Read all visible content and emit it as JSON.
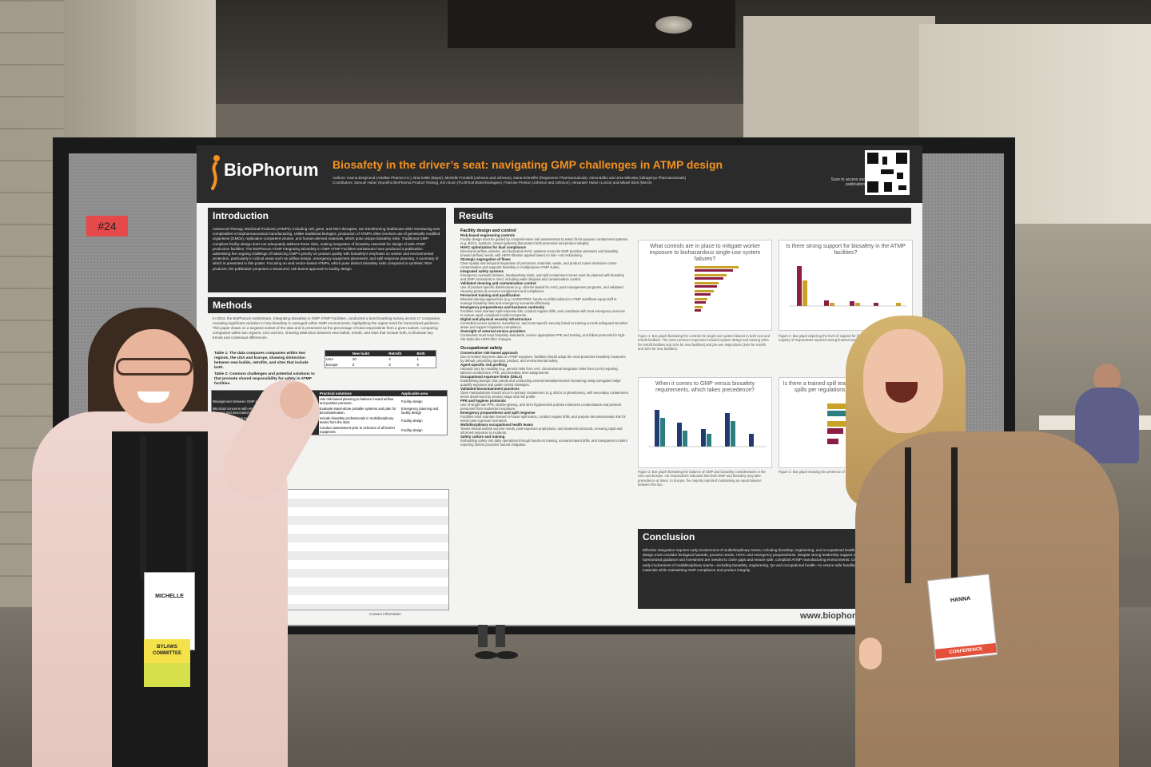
{
  "sign": {
    "number": "#24"
  },
  "poster": {
    "logo": "BioPhorum",
    "title": "Biosafety in the driver’s seat: navigating GMP challenges in ATMP design",
    "authors": "Authors: Hanna Bergmoud (Astellas Pharma Inc.), Bria Kettle (Bayer), Michelle Frondelli (Johnson and Johnson), Dana Schneffer (Regeneron Pharmaceuticals), Alexa Balbo and Jess Mikoska (Ultragenyx Pharmaceuticals)",
    "contributors": "Contributors: Samuel Huber (Eurofins BioPharma Product Testing), Erin Dunn (FUJIFILM Biotechnologies), Francine Preston (Johnson and Johnson), Alexander Huber (Lonza) and Mikael Blick (Merck)",
    "scan_text": "Scan to access our publication",
    "intro_heading": "Introduction",
    "intro_text": "Advanced Therapy Medicinal Products (ATMPs), including cell, gene, and RNA therapies, are transforming healthcare while introducing new complexities in biopharmaceutical manufacturing. Unlike traditional biologics, production of ATMPs often involves use of genetically modified organisms (GMOs), replication-competent viruses, and human-derived materials, which pose unique biosafety risks. Traditional GMP-compliant facility design does not adequately address these risks, making integration of biosafety essential for design of safe ATMP production facilities. The BioPhorum ATMP Integrating Biosafety in GMP ATMP Facilities workstream have produced a publication addressing the ongoing challenge of balancing GMP's priority on product quality with biosafety's emphasis on worker and environmental protection, particularly in critical areas such as airflow design, emergency equipment placement, and spill response planning. A summary of which is presented in this poster. Focusing on viral vector-based ATMPs, which pose distinct biosafety risks compared to synthetic RNA products, the publication proposes a structured, risk-based approach to facility design.",
    "methods_heading": "Methods",
    "methods_text": "In 2024, the BioPhorum workstream, Integrating Biosafety in GMP ATMP Facilities, conducted a benchmarking survey across 17 companies, revealing significant variation in how biosafety is managed within GMP environments, highlighting the urgent need for harmonized guidance. This paper draws on a targeted subset of the data and is presented as the percentage of total respondents from a given subset, comparing companies within two regions, USA and EU, showing distinction between new builds, retrofit, and sites that include both, to illustrate key trends and contextual differences.",
    "table1_caption": "Table 1: The data compares companies within two regions, the USA and Europe, showing distinction between new builds, retrofits, and sites that include both.",
    "table2_caption": "Table 2: Common challenges and potential solutions to that promote shared responsibility for safety in ATMP facilities.",
    "table1": {
      "headers": [
        "",
        "New build",
        "Retrofit",
        "Both"
      ],
      "rows": [
        [
          "USA",
          "10",
          "4",
          "1"
        ],
        [
          "Europe",
          "2",
          "3",
          "0"
        ]
      ]
    },
    "table2": {
      "headers": [
        "",
        "Practical solutions",
        "Applicable area"
      ],
      "rows": [
        [
          "Misalignment between GMP and biosafety (e.g., airflow conflicts)",
          "Use risk-based planning to balance inward airflow and positive pressure.",
          "Facility design"
        ],
        [
          "Microbial concerns with emergency equipment (e.g. eyewash safety showers and associated drains)",
          "Evaluate stand-alone portable systems and plan for decontamination.",
          "Emergency planning and facility design"
        ],
        [
          "Inadequate planning and coordination with appropriate biosafety personnel in early design",
          "Include biosafety professionals in multidisciplinary teams from the start.",
          "Facility design"
        ],
        [
          "Designing engineering controls",
          "Conduct assessment prior to selection of all barrier equipment.",
          "Facility design"
        ]
      ]
    },
    "results_heading": "Results",
    "results": [
      {
        "sub": "Facility design and control",
        "items": [
          {
            "h": "Risk-based engineering controls",
            "t": "Facility design must be guided by comprehensive risk assessments to select fit-for-purpose containment systems (e.g. BSCs, isolators, closed systems) that protect both personnel and product integrity."
          },
          {
            "h": "HVAC optimization for dual compliance",
            "t": "Directional airflow, airlocks, and dedicated HVAC systems reconcile GMP (positive pressure) and biosafety (inward airflow) needs, with HEPA filtration applied based on risk—not redundancy."
          },
          {
            "h": "Strategic segregation of flows",
            "t": "Clear spatial and temporal separation of personnel, materials, waste, and product routes minimizes cross-contamination and supports biosafety in multipurpose ATMP suites."
          },
          {
            "h": "Integrated safety systems",
            "t": "Emergency eyewash stations, handwashing sinks, and spill containment zones must be planned with biosafety and GMP constraints in mind, including water disposal and contamination control."
          },
          {
            "h": "Validated cleaning and contamination control",
            "t": "Use of product-specific disinfectants (e.g. chlorine-based for AAV), pest management programs, and validated cleaning protocols ensures containment and compliance."
          },
          {
            "h": "Personnel training and qualification",
            "t": "Blended training approaches (e.g. HAZWOPER, hands-on drills) tailored to ATMP workflows equip staff to manage biosafety risks and emergency scenarios effectively."
          },
          {
            "h": "Emergency preparedness and business continuity",
            "t": "Facilities must maintain spill-response kits, conduct regular drills, and coordinate with local emergency services to ensure rapid, compliant incident response."
          },
          {
            "h": "Digital and physical security infrastructure",
            "t": "Controlled access systems, surveillance, and room-specific security linked to training records safeguard sensitive areas and support regulatory compliance."
          },
          {
            "h": "Oversight of external service providers",
            "t": "Contractors must meet biosafety standards, receive appropriate PPE and training, and follow protocols for high-risk tasks like HEPA filter changes."
          }
        ]
      },
      {
        "sub": "Occupational safety",
        "items": [
          {
            "h": "Conservative risk-based approach",
            "t": "Due to limited long-term data on ATMP exposure, facilities should adopt the most protective biosafety measures by default, prioritizing operator, product, and environmental safety."
          },
          {
            "h": "Agent-specific risk profiling",
            "t": "Hazards vary by modality (e.g. aerosol risks from AAV, chromosomal integration risks from LVVs) requiring tailored containment, PPE, and biosafety level assignments."
          },
          {
            "h": "Occupational exposure limits (OELs)",
            "t": "Establishing biologic OEL bands and conducting environmental/personnel monitoring using surrogates helps quantify exposure and guide control strategies."
          },
          {
            "h": "Validated biocontainment practices",
            "t": "Open manipulations should occur in primary containment (e.g. BSCs or gloveboxes), with secondary containment levels determined by product stage and risk profile."
          },
          {
            "h": "PPE and hygiene protocols",
            "t": "Use of single-use PPE, double-gloving, and strict hygiene/sick policies minimizes contamination and protects personnel from inadvertent exposure."
          },
          {
            "h": "Emergency preparedness and spill response",
            "t": "Facilities must maintain trained in-house spill teams, conduct regular drills, and prepare decontamination kits for worst-case exposure scenarios."
          },
          {
            "h": "Multidisciplinary occupational health teams",
            "t": "Teams should assess vaccine needs, post-exposure prophylaxis, and treatment protocols, ensuring rapid and informed response to incidents."
          },
          {
            "h": "Safety culture and training",
            "t": "Embedding safety into daily operations through hands-on training, scenario-based drills, and transparent incident reporting fosters proactive hazard mitigation."
          }
        ]
      }
    ],
    "figures": [
      {
        "title": "What controls are in place to mitigate worker exposure to biohazardous single-use system failures?",
        "caption": "Figure 1: Bar graph illustrating the controls for single-use system failures in both new and retrofit facilities. The most common responses included system design and training (29% for retrofit facilities and 33% for new facilities) and pre-use inspections (18% for retrofit and 15% for new facilities)."
      },
      {
        "title": "Is there strong support for biosafety in the ATMP facilities?",
        "caption": "Figure 2: Bar graph depicting the level of support for biosafety in ATMP facilities. The majority of respondents reported strong financial and leadership support."
      },
      {
        "title": "When it comes to GMP versus biosafety requirements, which takes precedence?",
        "caption": "Figure 3: Bar graph illustrating the balance of GMP and biosafety considerations in the USA and Europe. US respondents indicated that both GMP and biosafety may take precedence at times. In Europe, the majority reported maintaining an equal balance between the two."
      },
      {
        "title": "Is there a trained spill team prepared to respond to spills per regulations (e.g. HAZWOPER)?",
        "caption": "Figure 4: Bar graph showing the presence of trained spill response teams."
      }
    ],
    "conclusion_heading": "Conclusion",
    "conclusion_text": "Effective integration requires early involvement of multidisciplinary teams, including biosafety, engineering, and occupational health experts. Risk-based facility design must consider biological hazards, process needs, HVAC and emergency preparedness. Despite strong leadership support in many organizations, harmonized guidance and investment are needed to close gaps and ensure safe, compliant ATMP manufacturing environments. Central to this approach is the early involvement of multidisciplinary teams—including biosafety, engineering, QA and occupational health—to ensure safe handling and containment of biological materials while maintaining GMP compliance and product integrity.",
    "contact": "Contact information",
    "url": "www.biophorum"
  },
  "badges": {
    "left_name": "MICHELLE",
    "left_ribbon_1": "BYLAWS",
    "left_ribbon_2": "COMMITTEE",
    "right_name": "HANNA",
    "right_strip": "CONFERENCE"
  },
  "colors": {
    "poster_dark": "#2b2b2b",
    "accent_orange": "#f29222",
    "bar_maroon": "#8b1d46",
    "bar_gold": "#c9a227",
    "bar_teal": "#2e7d7f",
    "bar_navy": "#1f3b70"
  }
}
